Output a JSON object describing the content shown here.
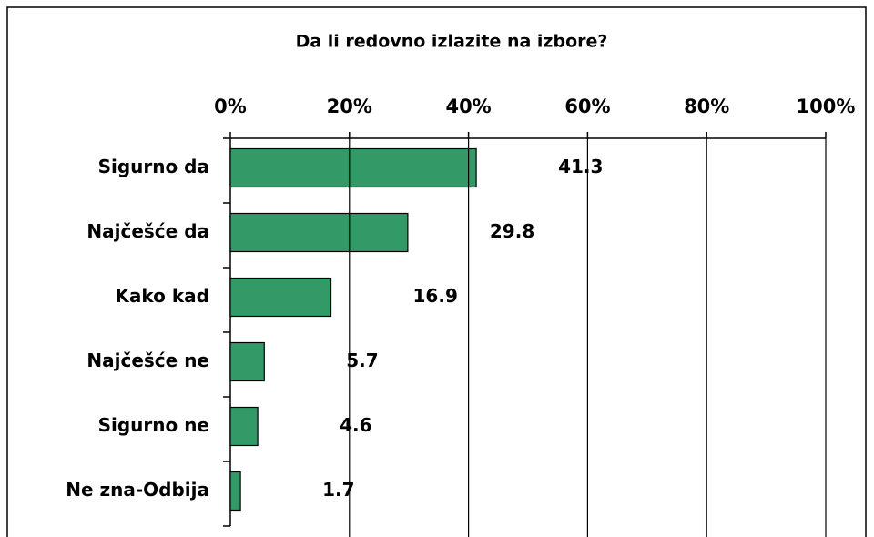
{
  "chart_data": {
    "type": "bar",
    "orientation": "horizontal",
    "title": "Da li redovno izlazite na izbore?",
    "categories": [
      "Sigurno da",
      "Najčešće da",
      "Kako kad",
      "Najčešće ne",
      "Sigurno ne",
      "Ne zna-Odbija"
    ],
    "values": [
      41.3,
      29.8,
      16.9,
      5.7,
      4.6,
      1.7
    ],
    "color": "#339966",
    "xlim": [
      0,
      100
    ],
    "xticks": [
      {
        "value": 0,
        "label": "0%"
      },
      {
        "value": 20,
        "label": "20%"
      },
      {
        "value": 40,
        "label": "40%"
      },
      {
        "value": 60,
        "label": "60%"
      },
      {
        "value": 80,
        "label": "80%"
      },
      {
        "value": 100,
        "label": "100%"
      }
    ],
    "grid": true
  }
}
